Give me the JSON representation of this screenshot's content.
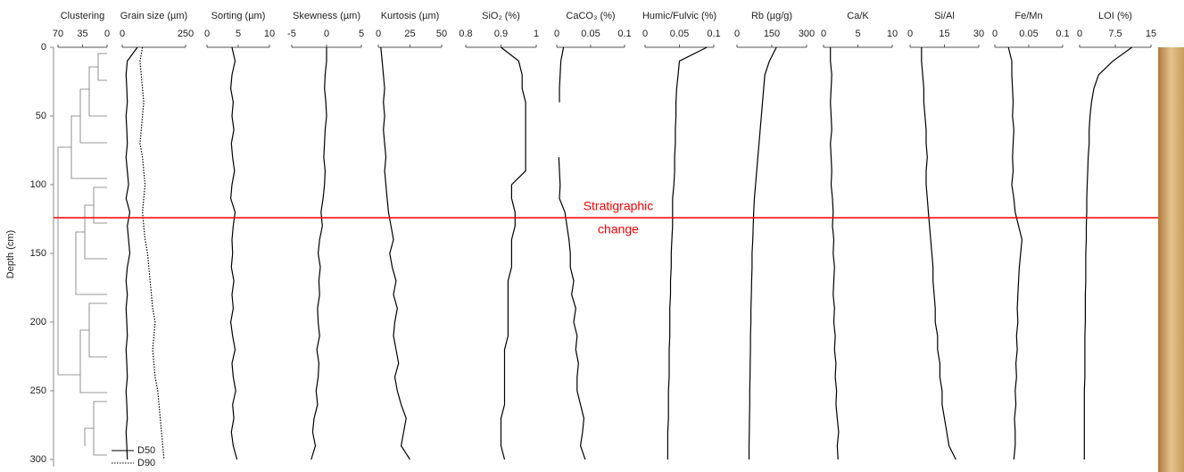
{
  "chart_data": {
    "type": "depth-profile",
    "ylabel": "Depth (cm)",
    "ylim": [
      0,
      305
    ],
    "yticks": [
      0,
      50,
      100,
      150,
      200,
      250,
      300
    ],
    "depth": [
      0,
      10,
      20,
      30,
      40,
      50,
      60,
      70,
      80,
      90,
      100,
      110,
      120,
      130,
      140,
      150,
      160,
      170,
      180,
      190,
      200,
      210,
      220,
      230,
      240,
      250,
      260,
      270,
      280,
      290,
      300
    ],
    "line_color": "#000000",
    "panels": [
      {
        "title": "Clustering",
        "xlim": [
          70,
          0
        ],
        "xticks": [
          70,
          35,
          0
        ],
        "series": []
      },
      {
        "title": "Grain size (µm)",
        "xlim": [
          0,
          250
        ],
        "xticks": [
          0,
          250
        ],
        "series": [
          {
            "name": "D50",
            "dash": "solid",
            "values": [
              60,
              20,
              15,
              18,
              20,
              15,
              18,
              20,
              15,
              20,
              25,
              15,
              30,
              20,
              25,
              30,
              20,
              15,
              20,
              15,
              18,
              20,
              15,
              18,
              20,
              15,
              18,
              20,
              15,
              18,
              20
            ]
          },
          {
            "name": "D90",
            "dash": "dotted",
            "values": [
              80,
              70,
              75,
              80,
              85,
              80,
              75,
              70,
              80,
              85,
              90,
              85,
              80,
              85,
              90,
              100,
              105,
              110,
              115,
              120,
              130,
              125,
              120,
              125,
              130,
              140,
              145,
              150,
              155,
              160,
              165
            ]
          }
        ]
      },
      {
        "title": "Sorting (µm)",
        "xlim": [
          0,
          10
        ],
        "xticks": [
          0,
          5,
          10
        ],
        "series": [
          {
            "values": [
              4,
              4.5,
              4,
              3.8,
              4.2,
              4,
              4.3,
              3.9,
              4.1,
              4.4,
              4,
              3.8,
              4.5,
              4.2,
              4,
              4.1,
              3.9,
              4.3,
              4,
              4.2,
              3.8,
              4.1,
              4.5,
              4,
              4.2,
              4.6,
              4.1,
              4.3,
              3.9,
              4.2,
              4.8
            ]
          }
        ]
      },
      {
        "title": "Skewness (µm)",
        "xlim": [
          -5,
          5
        ],
        "xticks": [
          -5,
          0,
          5
        ],
        "series": [
          {
            "values": [
              0,
              0,
              -0.2,
              -0.3,
              -0.1,
              0,
              -0.2,
              -0.3,
              -0.4,
              -0.2,
              -0.3,
              -0.5,
              -0.8,
              -0.6,
              -1,
              -1.2,
              -0.9,
              -1.1,
              -1,
              -1.3,
              -1.2,
              -1,
              -1.4,
              -1.1,
              -1.2,
              -1.5,
              -1.3,
              -1.8,
              -2,
              -1.6,
              -2.2
            ]
          }
        ]
      },
      {
        "title": "Kurtosis (µm)",
        "xlim": [
          0,
          50
        ],
        "xticks": [
          0,
          25,
          50
        ],
        "series": [
          {
            "values": [
              2,
              3,
              4,
              5,
              4,
              5,
              4,
              5,
              6,
              5,
              6,
              7,
              8,
              10,
              12,
              9,
              11,
              14,
              12,
              15,
              13,
              12,
              14,
              16,
              13,
              15,
              18,
              22,
              20,
              18,
              25
            ]
          }
        ]
      },
      {
        "title": "SiO₂ (%)",
        "xlim": [
          0.8,
          1
        ],
        "xticks": [
          0.8,
          0.9,
          1
        ],
        "series": [
          {
            "values": [
              0.9,
              0.95,
              0.96,
              0.96,
              0.97,
              0.97,
              0.97,
              0.97,
              0.97,
              0.97,
              0.93,
              0.93,
              0.94,
              0.94,
              0.93,
              0.93,
              0.93,
              0.92,
              0.92,
              0.92,
              0.92,
              0.92,
              0.91,
              0.91,
              0.91,
              0.91,
              0.91,
              0.9,
              0.9,
              0.9,
              0.91
            ]
          }
        ]
      },
      {
        "title": "CaCO₃ (%)",
        "xlim": [
          0,
          0.1
        ],
        "xticks": [
          0,
          0.05,
          0.1
        ],
        "series": [
          {
            "values": [
              0.01,
              0.006,
              0.005,
              0.004,
              0.004,
              null,
              0.004,
              null,
              0.003,
              0.004,
              0.005,
              0.004,
              0.012,
              0.015,
              0.018,
              0.02,
              0.02,
              0.025,
              0.022,
              0.028,
              0.025,
              0.03,
              0.028,
              0.032,
              0.03,
              0.03,
              0.035,
              0.04,
              0.038,
              0.035,
              0.042
            ]
          }
        ]
      },
      {
        "title": "Humic/Fulvic (%)",
        "xlim": [
          0,
          0.1
        ],
        "xticks": [
          0,
          0.05,
          0.1
        ],
        "series": [
          {
            "values": [
              0.09,
              0.05,
              0.048,
              0.046,
              0.045,
              0.045,
              0.044,
              0.044,
              0.043,
              0.043,
              0.042,
              0.04,
              0.04,
              0.04,
              0.039,
              0.038,
              0.038,
              0.037,
              0.037,
              0.036,
              0.036,
              0.036,
              0.035,
              0.035,
              0.035,
              0.034,
              0.034,
              0.034,
              0.033,
              0.033,
              0.033
            ]
          }
        ]
      },
      {
        "title": "Rb (µg/g)",
        "xlim": [
          0,
          300
        ],
        "xticks": [
          0,
          150,
          300
        ],
        "series": [
          {
            "values": [
              170,
              140,
              120,
              115,
              110,
              105,
              100,
              95,
              90,
              85,
              80,
              75,
              72,
              70,
              68,
              65,
              65,
              63,
              62,
              60,
              60,
              58,
              58,
              57,
              56,
              55,
              55,
              54,
              53,
              52,
              52
            ]
          }
        ]
      },
      {
        "title": "Ca/K",
        "xlim": [
          0,
          10
        ],
        "xticks": [
          0,
          5,
          10
        ],
        "series": [
          {
            "values": [
              1,
              1,
              1.2,
              1.1,
              1,
              1.1,
              1.2,
              1,
              1.1,
              1.2,
              1.1,
              1.3,
              1.4,
              1.3,
              1.5,
              1.4,
              1.6,
              1.5,
              1.4,
              1.6,
              1.5,
              1.7,
              1.6,
              1.8,
              1.7,
              1.9,
              1.8,
              2,
              2.2,
              2,
              2.1
            ]
          }
        ]
      },
      {
        "title": "Si/Al",
        "xlim": [
          0,
          30
        ],
        "xticks": [
          0,
          15,
          30
        ],
        "series": [
          {
            "values": [
              5,
              5,
              5.5,
              6,
              6,
              6.5,
              7,
              7,
              7.5,
              7,
              7,
              7.5,
              8,
              8.5,
              9,
              9.5,
              10,
              10,
              10.5,
              11,
              11,
              12,
              12,
              13,
              13,
              14,
              14,
              15,
              16,
              17,
              20
            ]
          }
        ]
      },
      {
        "title": "Fe/Mn",
        "xlim": [
          0,
          0.1
        ],
        "xticks": [
          0,
          0.05,
          0.1
        ],
        "series": [
          {
            "values": [
              0.02,
              0.025,
              0.025,
              0.026,
              0.027,
              0.026,
              0.028,
              0.027,
              0.026,
              0.027,
              0.025,
              0.028,
              0.03,
              0.035,
              0.04,
              0.038,
              0.036,
              0.035,
              0.034,
              0.033,
              0.034,
              0.032,
              0.033,
              0.031,
              0.032,
              0.03,
              0.031,
              0.029,
              0.03,
              0.03,
              0.028
            ]
          }
        ]
      },
      {
        "title": "LOI (%)",
        "xlim": [
          0,
          15
        ],
        "xticks": [
          0,
          7.5,
          15
        ],
        "series": [
          {
            "values": [
              11,
              7,
              4,
              3,
              2.5,
              2.2,
              2,
              2,
              1.8,
              1.7,
              1.6,
              1.5,
              1.5,
              1.4,
              1.4,
              1.3,
              1.3,
              1.3,
              1.2,
              1.2,
              1.2,
              1.1,
              1.1,
              1.1,
              1.1,
              1,
              1,
              1,
              1,
              1,
              1
            ]
          }
        ]
      }
    ],
    "annotation": {
      "lines": [
        "Stratigraphic",
        "change"
      ],
      "depth": 124,
      "color": "#ff0000"
    }
  }
}
